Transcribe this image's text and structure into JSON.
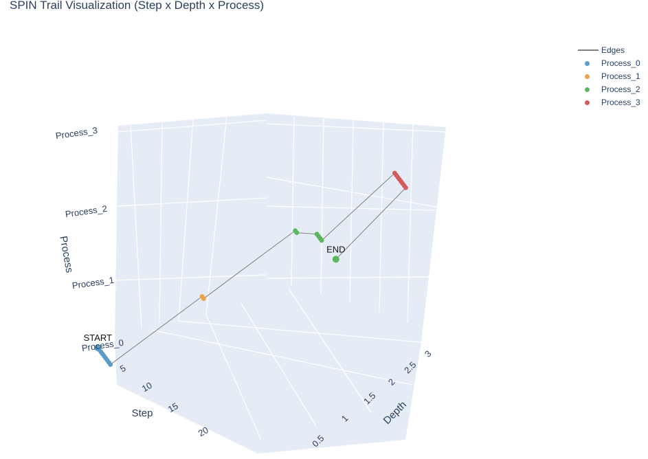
{
  "title": "SPIN Trail Visualization (Step x Depth x Process)",
  "colors": {
    "edges": "#7f7f7f",
    "Process_0": "#5b9bc8",
    "Process_1": "#f0a04b",
    "Process_2": "#5db55d",
    "Process_3": "#d45b5b",
    "grid": "#ffffff",
    "pane": "#e5ecf6"
  },
  "legend": [
    {
      "name": "Edges",
      "kind": "line",
      "color_key": "edges"
    },
    {
      "name": "Process_0",
      "kind": "dot",
      "color_key": "Process_0"
    },
    {
      "name": "Process_1",
      "kind": "dot",
      "color_key": "Process_1"
    },
    {
      "name": "Process_2",
      "kind": "dot",
      "color_key": "Process_2"
    },
    {
      "name": "Process_3",
      "kind": "dot",
      "color_key": "Process_3"
    }
  ],
  "chart_data": {
    "type": "scatter3d",
    "title": "SPIN Trail Visualization (Step x Depth x Process)",
    "axes": {
      "x": {
        "label": "Step",
        "ticks": [
          "5",
          "10",
          "15",
          "20"
        ]
      },
      "y": {
        "label": "Depth",
        "ticks": [
          "0.5",
          "1",
          "1.5",
          "2",
          "2.5",
          "3"
        ]
      },
      "z": {
        "label": "Process",
        "ticks": [
          "Process_0",
          "Process_1",
          "Process_2",
          "Process_3"
        ]
      }
    },
    "grid": true,
    "legend_position": "top-right",
    "series": [
      {
        "name": "Process_0",
        "color_key": "Process_0",
        "points": [
          [
            1,
            0,
            0
          ],
          [
            2,
            0,
            0
          ],
          [
            3,
            0,
            0
          ],
          [
            4,
            0,
            0
          ],
          [
            5,
            0,
            0
          ],
          [
            6,
            0,
            0
          ],
          [
            7,
            0,
            0
          ],
          [
            8,
            0,
            0
          ],
          [
            9,
            0,
            0
          ]
        ]
      },
      {
        "name": "Process_1",
        "color_key": "Process_1",
        "points": [
          [
            10,
            1,
            1
          ],
          [
            11,
            1,
            1
          ]
        ]
      },
      {
        "name": "Process_2",
        "color_key": "Process_2",
        "points": [
          [
            12,
            2,
            2
          ],
          [
            13,
            2,
            2
          ],
          [
            14,
            3,
            2
          ],
          [
            15,
            3,
            2
          ],
          [
            16,
            3,
            2
          ],
          [
            17,
            3,
            2
          ]
        ]
      },
      {
        "name": "Process_3",
        "color_key": "Process_3",
        "points": [
          [
            18,
            3,
            3
          ],
          [
            19,
            3,
            3
          ],
          [
            20,
            3,
            3
          ],
          [
            21,
            3,
            3
          ],
          [
            22,
            3,
            3
          ],
          [
            23,
            3,
            3
          ],
          [
            24,
            3,
            3
          ],
          [
            25,
            3,
            3
          ]
        ]
      }
    ],
    "annotations": [
      {
        "text": "START",
        "point": [
          1,
          0,
          0
        ]
      },
      {
        "text": "END",
        "point": [
          26,
          3,
          2
        ]
      }
    ],
    "end_point": [
      26,
      3,
      2
    ]
  }
}
